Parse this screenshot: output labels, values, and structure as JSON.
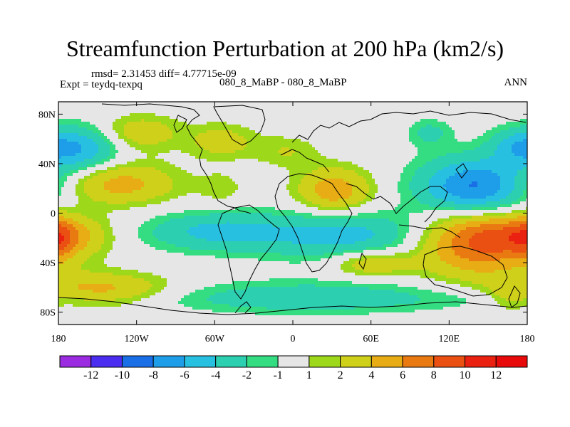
{
  "chart_data": {
    "type": "heatmap",
    "title": "Streamfunction Perturbation at 200 hPa (km2/s)",
    "stats_label": "rmsd= 2.31453 diff= 4.77715e-09",
    "experiment_label": "Expt = teydq-texpq",
    "period_label": "080_8_MaBP - 080_8_MaBP",
    "season_label": "ANN",
    "x_ticks": [
      "180",
      "120W",
      "60W",
      "0",
      "60E",
      "120E",
      "180"
    ],
    "x_tick_values": [
      -180,
      -120,
      -60,
      0,
      60,
      120,
      180
    ],
    "y_ticks": [
      "80N",
      "40N",
      "0",
      "40S",
      "80S"
    ],
    "y_tick_values": [
      80,
      40,
      0,
      -40,
      -80
    ],
    "xlim": [
      -180,
      180
    ],
    "ylim": [
      -90,
      90
    ],
    "contour_levels": [
      -12,
      -10,
      -8,
      -6,
      -4,
      -2,
      -1,
      1,
      2,
      4,
      6,
      8,
      10,
      12
    ],
    "colorbar_labels": [
      "-12",
      "-10",
      "-8",
      "-6",
      "-4",
      "-2",
      "-1",
      "1",
      "2",
      "4",
      "6",
      "8",
      "10",
      "12"
    ],
    "colorbar_colors": [
      "#9a2be0",
      "#4a2df0",
      "#1a6ee6",
      "#1e9ee8",
      "#28c0e0",
      "#2ccfb0",
      "#35dd82",
      "#e6e6e6",
      "#9ed81a",
      "#cfd01a",
      "#e8ac14",
      "#e97a12",
      "#ea5012",
      "#ea2010",
      "#e80a0a"
    ],
    "features": [
      {
        "lon": -165,
        "lat": 52,
        "amp": -6,
        "sx": 22,
        "sy": 13
      },
      {
        "lon": -118,
        "lat": 65,
        "amp": 3.5,
        "sx": 22,
        "sy": 10
      },
      {
        "lon": -55,
        "lat": 58,
        "amp": 3,
        "sx": 18,
        "sy": 10
      },
      {
        "lon": -135,
        "lat": 24,
        "amp": 5,
        "sx": 32,
        "sy": 12
      },
      {
        "lon": -55,
        "lat": 20,
        "amp": 1.6,
        "sx": 12,
        "sy": 9
      },
      {
        "lon": -5,
        "lat": 50,
        "amp": 2,
        "sx": 18,
        "sy": 9
      },
      {
        "lon": 32,
        "lat": 18,
        "amp": 5.5,
        "sx": 20,
        "sy": 13
      },
      {
        "lon": 140,
        "lat": 20,
        "amp": -9,
        "sx": 30,
        "sy": 17
      },
      {
        "lon": 105,
        "lat": 65,
        "amp": -2.5,
        "sx": 12,
        "sy": 8
      },
      {
        "lon": 170,
        "lat": 55,
        "amp": -2.5,
        "sx": 14,
        "sy": 9
      },
      {
        "lon": -178,
        "lat": -18,
        "amp": 4.5,
        "sx": 25,
        "sy": 11
      },
      {
        "lon": -60,
        "lat": -15,
        "amp": -4.5,
        "sx": 38,
        "sy": 11
      },
      {
        "lon": 40,
        "lat": -18,
        "amp": -5,
        "sx": 45,
        "sy": 14
      },
      {
        "lon": 142,
        "lat": -22,
        "amp": 8.5,
        "sx": 32,
        "sy": 20
      },
      {
        "lon": 180,
        "lat": -20,
        "amp": 2.5,
        "sx": 8,
        "sy": 14
      },
      {
        "lon": 60,
        "lat": -40,
        "amp": 4,
        "sx": 22,
        "sy": 8
      },
      {
        "lon": -145,
        "lat": -63,
        "amp": 5,
        "sx": 36,
        "sy": 10
      },
      {
        "lon": 15,
        "lat": -68,
        "amp": -3.5,
        "sx": 75,
        "sy": 9
      },
      {
        "lon": 165,
        "lat": -68,
        "amp": 2,
        "sx": 12,
        "sy": 8
      },
      {
        "lon": -160,
        "lat": -70,
        "amp": -1.5,
        "sx": 60,
        "sy": 6
      }
    ]
  }
}
